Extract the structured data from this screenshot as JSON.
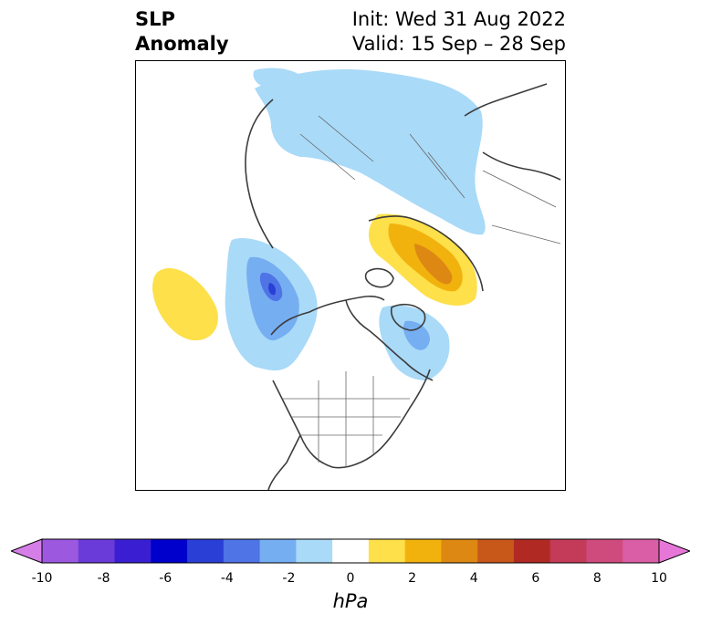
{
  "title": {
    "left_line1": "SLP",
    "left_line2": "Anomaly",
    "right_line1": "Init: Wed 31 Aug 2022",
    "right_line2": "Valid: 15 Sep – 28 Sep"
  },
  "colorbar": {
    "label": "hPa",
    "ticks": [
      "-10",
      "-8",
      "-6",
      "-4",
      "-2",
      "0",
      "2",
      "4",
      "6",
      "8",
      "10"
    ],
    "colors": [
      "#d67ee8",
      "#9c59e0",
      "#6b3bd9",
      "#3a1fd2",
      "#0000cc",
      "#2a3fd6",
      "#4f74e6",
      "#76aef2",
      "#a9daf8",
      "#ffffff",
      "#fde04a",
      "#f2b20d",
      "#dc8812",
      "#c8581a",
      "#b02a23",
      "#c33b58",
      "#cf4b7e",
      "#d95ea6",
      "#e677d8"
    ]
  },
  "map": {
    "projection": "north-polar",
    "anomaly_regions": [
      {
        "name": "eurasia-arctic-low",
        "sign": "negative",
        "peak": "-2"
      },
      {
        "name": "alaska-gulf-low",
        "sign": "negative",
        "peak": "-5"
      },
      {
        "name": "hudson-baffin-low",
        "sign": "negative",
        "peak": "-4"
      },
      {
        "name": "europe-high",
        "sign": "positive",
        "peak": "4"
      },
      {
        "name": "north-pacific-high",
        "sign": "positive",
        "peak": "2"
      }
    ]
  }
}
